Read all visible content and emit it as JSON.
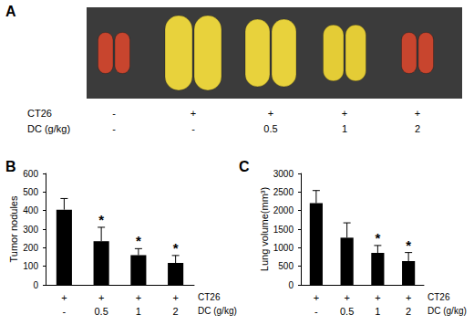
{
  "panel_a": {
    "label": "A",
    "rows": [
      {
        "label": "CT26",
        "labels": [
          "-",
          "+",
          "+",
          "+",
          "+"
        ]
      },
      {
        "label": "DC (g/kg)",
        "labels": [
          "-",
          "-",
          "0.5",
          "1",
          "2"
        ]
      }
    ]
  },
  "chart_data": [
    {
      "type": "bar",
      "panel": "B",
      "y_label": "Tumor nodules",
      "categories": [
        "-",
        "0.5",
        "1",
        "2"
      ],
      "category_label": "DC (g/kg)",
      "category_rows": [
        {
          "label": "CT26",
          "labels": [
            "+",
            "+",
            "+",
            "+"
          ]
        }
      ],
      "values": [
        405,
        235,
        160,
        118
      ],
      "errors": [
        60,
        75,
        35,
        40
      ],
      "significance": [
        null,
        "*",
        "*",
        "*"
      ],
      "color": "#000000",
      "ylim": [
        0,
        600
      ],
      "yticks": [
        0,
        100,
        200,
        300,
        400,
        500,
        600
      ],
      "grid": false
    },
    {
      "type": "bar",
      "panel": "C",
      "y_label": "Lung volume(mm³)",
      "categories": [
        "-",
        "0.5",
        "1",
        "2"
      ],
      "category_label": "DC (g/kg)",
      "category_rows": [
        {
          "label": "CT26",
          "labels": [
            "+",
            "+",
            "+",
            "+"
          ]
        }
      ],
      "values": [
        2200,
        1270,
        860,
        640
      ],
      "errors": [
        340,
        400,
        200,
        230
      ],
      "significance": [
        null,
        null,
        "*",
        "*"
      ],
      "color": "#000000",
      "ylim": [
        0,
        3000
      ],
      "yticks": [
        0,
        500,
        1000,
        1500,
        2000,
        2500,
        3000
      ],
      "grid": false
    }
  ]
}
